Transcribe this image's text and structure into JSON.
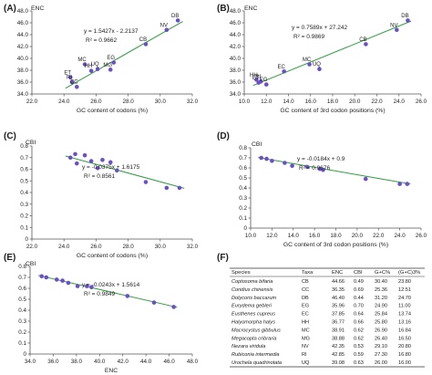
{
  "chart_data": [
    {
      "panel": "(A)",
      "type": "scatter",
      "ylabel": "ENC",
      "xlabel": "GC content of codons (%)",
      "xlim": [
        22.0,
        32.0
      ],
      "ylim": [
        34.0,
        48.0
      ],
      "xticks": [
        "22.0",
        "24.0",
        "26.0",
        "28.0",
        "30.0",
        "32.0"
      ],
      "yticks": [
        "34.0",
        "36.0",
        "38.0",
        "40.0",
        "42.0",
        "44.0",
        "46.0",
        "48.0"
      ],
      "equation": "y = 1.5427x - 2.2137",
      "r2": "R² = 0.9662",
      "fit": {
        "slope": 1.5427,
        "intercept": -2.2137
      },
      "points": [
        {
          "label": "DB",
          "x": 31.1,
          "y": 46.4
        },
        {
          "label": "NV",
          "x": 30.4,
          "y": 44.8
        },
        {
          "label": "CB",
          "x": 29.1,
          "y": 42.4
        },
        {
          "label": "EG",
          "x": 27.1,
          "y": 39.3
        },
        {
          "label": "MG",
          "x": 26.9,
          "y": 38.1
        },
        {
          "label": "UQ",
          "x": 26.1,
          "y": 38.2
        },
        {
          "label": "MC",
          "x": 25.3,
          "y": 39.0
        },
        {
          "label": "HH",
          "x": 25.7,
          "y": 37.9
        },
        {
          "label": "ET",
          "x": 24.4,
          "y": 36.8
        },
        {
          "label": "RI",
          "x": 24.5,
          "y": 36.0
        },
        {
          "label": "CC",
          "x": 24.8,
          "y": 35.2
        }
      ]
    },
    {
      "panel": "(B)",
      "type": "scatter",
      "ylabel": "ENC",
      "xlabel": "GC content of 3rd codon positions (%)",
      "xlim": [
        10.0,
        26.0
      ],
      "ylim": [
        34.0,
        48.0
      ],
      "xticks": [
        "10.0",
        "12.0",
        "14.0",
        "16.0",
        "18.0",
        "20.0",
        "22.0",
        "24.0",
        "26.0"
      ],
      "yticks": [
        "34.0",
        "36.0",
        "38.0",
        "40.0",
        "42.0",
        "44.0",
        "46.0",
        "48.0"
      ],
      "equation": "y = 0.7589x + 27.242",
      "r2": "R² = 0.9869",
      "fit": {
        "slope": 0.7589,
        "intercept": 27.242
      },
      "points": [
        {
          "label": "DB",
          "x": 24.8,
          "y": 46.4
        },
        {
          "label": "NV",
          "x": 23.8,
          "y": 44.8
        },
        {
          "label": "CB",
          "x": 21.0,
          "y": 42.4
        },
        {
          "label": "MC",
          "x": 15.9,
          "y": 39.0
        },
        {
          "label": "UQ",
          "x": 16.8,
          "y": 38.2
        },
        {
          "label": "EC",
          "x": 13.6,
          "y": 37.8
        },
        {
          "label": "HH",
          "x": 11.1,
          "y": 36.4
        },
        {
          "label": "RI",
          "x": 11.5,
          "y": 36.1
        },
        {
          "label": "EG",
          "x": 12.0,
          "y": 35.6
        },
        {
          "label": "ET",
          "x": 11.3,
          "y": 35.9
        }
      ]
    },
    {
      "panel": "(C)",
      "type": "scatter",
      "ylabel": "CBI",
      "xlabel": "GC content of codons (%)",
      "xlim": [
        22.0,
        32.0
      ],
      "ylim": [
        0.0,
        0.8
      ],
      "xticks": [
        "22.0",
        "24.0",
        "26.0",
        "28.0",
        "30.0",
        "32.0"
      ],
      "yticks": [
        "0",
        "0.1",
        "0.2",
        "0.3",
        "0.4",
        "0.5",
        "0.6",
        "0.7",
        "0.8"
      ],
      "equation": "y = -0.0375x + 1.6175",
      "r2": "R² = 0.8561",
      "fit": {
        "slope": -0.0375,
        "intercept": 1.6175
      },
      "points": [
        {
          "x": 24.4,
          "y": 0.7
        },
        {
          "x": 24.7,
          "y": 0.73
        },
        {
          "x": 24.8,
          "y": 0.65
        },
        {
          "x": 25.3,
          "y": 0.72
        },
        {
          "x": 25.7,
          "y": 0.67
        },
        {
          "x": 26.1,
          "y": 0.61
        },
        {
          "x": 26.4,
          "y": 0.68
        },
        {
          "x": 26.9,
          "y": 0.66
        },
        {
          "x": 27.3,
          "y": 0.59
        },
        {
          "x": 29.1,
          "y": 0.49
        },
        {
          "x": 30.4,
          "y": 0.44
        },
        {
          "x": 31.2,
          "y": 0.44
        }
      ]
    },
    {
      "panel": "(D)",
      "type": "scatter",
      "ylabel": "CBI",
      "xlabel": "GC content of 3rd codon positions (%)",
      "xlim": [
        10.0,
        26.0
      ],
      "ylim": [
        0.0,
        0.8
      ],
      "xticks": [
        "10.0",
        "12.0",
        "14.0",
        "16.0",
        "18.0",
        "20.0",
        "22.0",
        "24.0",
        "26.0"
      ],
      "yticks": [
        "0",
        "0.1",
        "0.2",
        "0.3",
        "0.4",
        "0.5",
        "0.6",
        "0.7",
        "0.8"
      ],
      "equation": "y = -0.0184x + 0.9",
      "r2": "R² = 0.9676",
      "fit": {
        "slope": -0.0184,
        "intercept": 0.9
      },
      "points": [
        {
          "x": 11.0,
          "y": 0.7
        },
        {
          "x": 11.5,
          "y": 0.69
        },
        {
          "x": 12.0,
          "y": 0.67
        },
        {
          "x": 13.2,
          "y": 0.65
        },
        {
          "x": 13.9,
          "y": 0.62
        },
        {
          "x": 15.3,
          "y": 0.61
        },
        {
          "x": 16.5,
          "y": 0.59
        },
        {
          "x": 16.8,
          "y": 0.58
        },
        {
          "x": 20.8,
          "y": 0.49
        },
        {
          "x": 24.0,
          "y": 0.44
        },
        {
          "x": 24.7,
          "y": 0.44
        }
      ]
    },
    {
      "panel": "(E)",
      "type": "scatter",
      "ylabel": "CBI",
      "xlabel": "ENC",
      "xlim": [
        34.0,
        48.0
      ],
      "ylim": [
        0.0,
        0.8
      ],
      "xticks": [
        "34.0",
        "36.0",
        "38.0",
        "40.0",
        "42.0",
        "44.0",
        "46.0",
        "48.0"
      ],
      "yticks": [
        "0",
        "0.1",
        "0.2",
        "0.3",
        "0.4",
        "0.5",
        "0.6",
        "0.7",
        "0.8"
      ],
      "equation": "y = -0.0243x + 1.5614",
      "r2": "R² = 0.9849",
      "fit": {
        "slope": -0.0243,
        "intercept": 1.5614
      },
      "points": [
        {
          "x": 35.0,
          "y": 0.71
        },
        {
          "x": 35.4,
          "y": 0.7
        },
        {
          "x": 36.3,
          "y": 0.68
        },
        {
          "x": 36.8,
          "y": 0.67
        },
        {
          "x": 37.3,
          "y": 0.65
        },
        {
          "x": 38.1,
          "y": 0.62
        },
        {
          "x": 38.9,
          "y": 0.62
        },
        {
          "x": 39.3,
          "y": 0.61
        },
        {
          "x": 42.4,
          "y": 0.53
        },
        {
          "x": 44.7,
          "y": 0.47
        },
        {
          "x": 46.4,
          "y": 0.43
        }
      ]
    },
    {
      "panel": "(F)",
      "type": "table",
      "headers": [
        "Species",
        "Taxa",
        "ENC",
        "CBI",
        "G+C%",
        "(G+C)3%"
      ],
      "rows": [
        [
          "Coptosoma bifaria",
          "CB",
          "44.66",
          "0.49",
          "30.40",
          "23.80"
        ],
        [
          "Coridius chinensis",
          "CC",
          "36.35",
          "0.69",
          "25.36",
          "12.51"
        ],
        [
          "Dolycoris baccarum",
          "DB",
          "46.40",
          "0.44",
          "31.20",
          "24.70"
        ],
        [
          "Eurydema gebleri",
          "EG",
          "35.96",
          "0.70",
          "24.90",
          "11.00"
        ],
        [
          "Eusthenes cupreus",
          "EC",
          "37.85",
          "0.64",
          "25.84",
          "13.74"
        ],
        [
          "Halyomorpha halys",
          "HH",
          "36.77",
          "0.66",
          "25.80",
          "13.16"
        ],
        [
          "Macrocystus gibbulus",
          "MC",
          "38.91",
          "0.62",
          "26.90",
          "16.84"
        ],
        [
          "Megacopta cribraria",
          "MG",
          "38.88",
          "0.62",
          "26.40",
          "16.50"
        ],
        [
          "Nezara viridula",
          "NV",
          "42.35",
          "0.53",
          "29.10",
          "20.80"
        ],
        [
          "Rubiconia intermedia",
          "RI",
          "42.85",
          "0.59",
          "27.30",
          "16.80"
        ],
        [
          "Urochela quadrinotata",
          "UQ",
          "39.08",
          "0.63",
          "26.00",
          "16.00"
        ]
      ]
    }
  ],
  "colors": {
    "point": "#6a4fc8",
    "fit_line": "#2e9e3e",
    "axis": "#555555",
    "text": "#222222"
  }
}
